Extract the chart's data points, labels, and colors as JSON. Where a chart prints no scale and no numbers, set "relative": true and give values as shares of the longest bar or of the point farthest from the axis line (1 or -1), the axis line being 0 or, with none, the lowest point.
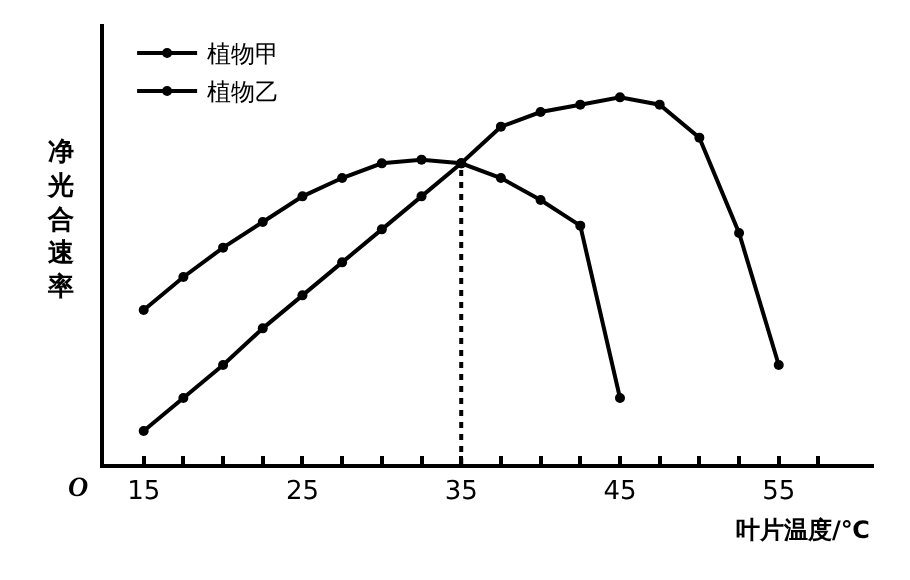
{
  "chart_data": {
    "type": "line",
    "relative": true,
    "xlabel": "叶片温度/℃",
    "ylabel": "净光合速率",
    "xlim": [
      12.5,
      61
    ],
    "xticks": [
      15,
      {
        "value": 17.5,
        "label": null
      },
      {
        "value": 20,
        "label": null
      },
      {
        "value": 22.5,
        "label": null
      },
      25,
      {
        "value": 27.5,
        "label": null
      },
      {
        "value": 30,
        "label": null
      },
      {
        "value": 32.5,
        "label": null
      },
      35,
      {
        "value": 37.5,
        "label": null
      },
      {
        "value": 40,
        "label": null
      },
      {
        "value": 42.5,
        "label": null
      },
      45,
      {
        "value": 47.5,
        "label": null
      },
      {
        "value": 50,
        "label": null
      },
      {
        "value": 52.5,
        "label": null
      },
      55,
      {
        "value": 57.5,
        "label": null
      }
    ],
    "series": [
      {
        "name": "植物甲",
        "color": "#000000",
        "x": [
          15,
          17.5,
          20,
          22.5,
          25,
          27.5,
          30,
          32.5,
          35,
          37.5,
          40,
          42.5,
          45,
          47.5,
          50,
          52.5,
          55
        ],
        "values": [
          0.09,
          0.18,
          0.27,
          0.37,
          0.46,
          0.55,
          0.64,
          0.73,
          0.82,
          0.92,
          0.96,
          0.98,
          1,
          0.98,
          0.89,
          0.63,
          0.27
        ]
      },
      {
        "name": "植物乙",
        "color": "#000000",
        "x": [
          15,
          17.5,
          20,
          22.5,
          25,
          27.5,
          30,
          32.5,
          35,
          37.5,
          40,
          42.5,
          45
        ],
        "values": [
          0.42,
          0.51,
          0.59,
          0.66,
          0.73,
          0.78,
          0.82,
          0.83,
          0.82,
          0.78,
          0.72,
          0.65,
          0.18
        ]
      }
    ],
    "ref_lines": [
      {
        "axis": "x",
        "value": 35,
        "label": null,
        "line_style": "dotted"
      }
    ],
    "annotations": [
      "O"
    ],
    "marker": "circle",
    "line_style": "solid",
    "legend": "top left"
  }
}
